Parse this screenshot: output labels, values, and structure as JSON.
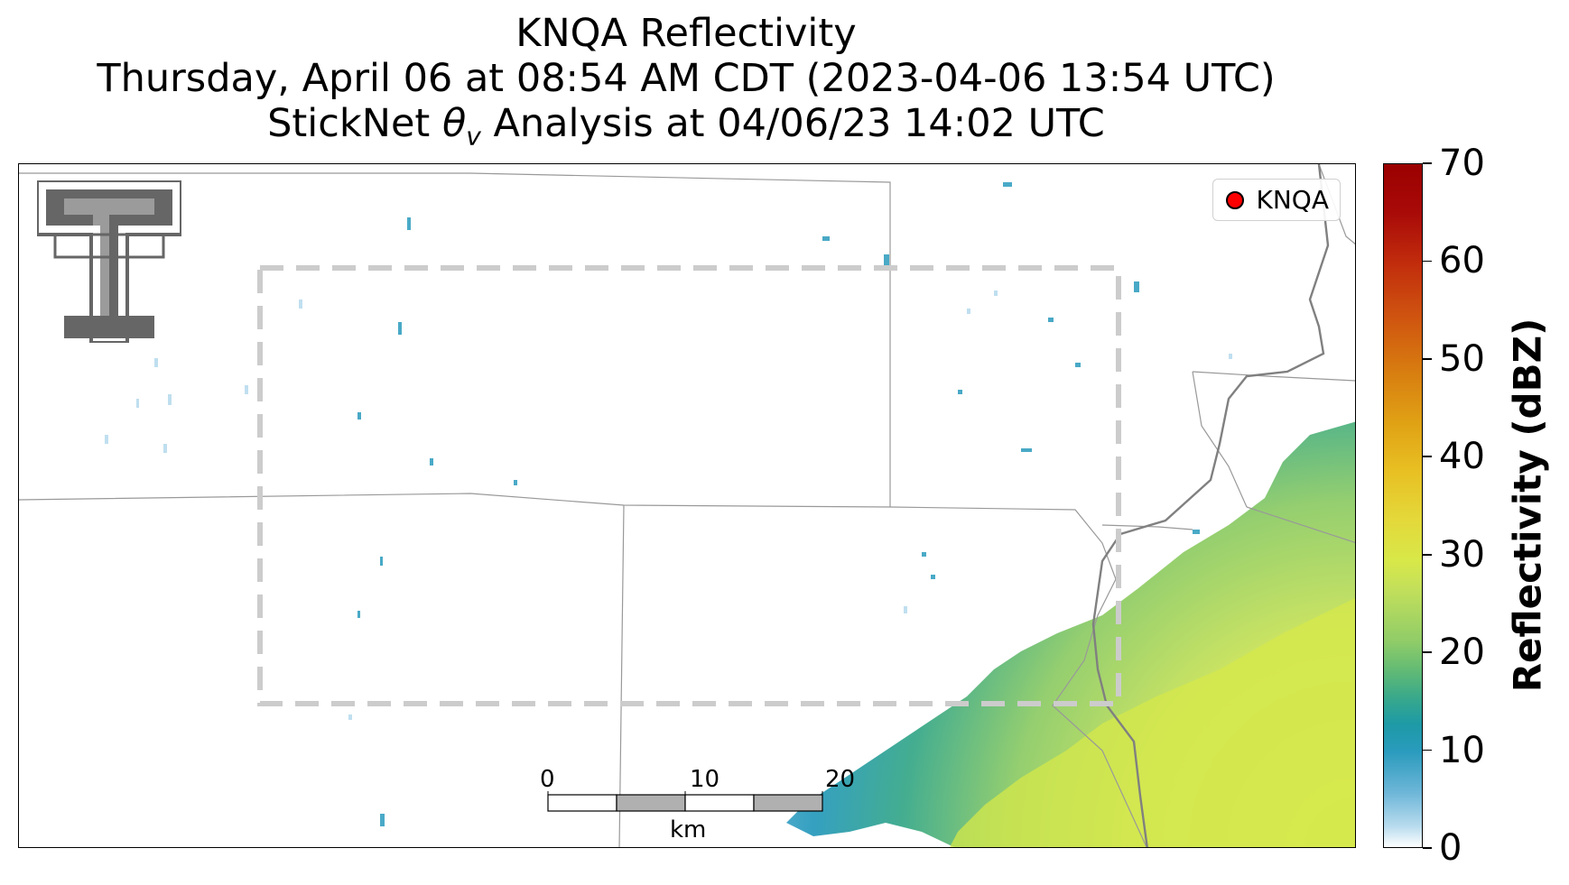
{
  "title": {
    "line1": "KNQA Reflectivity",
    "line2": "Thursday, April 06 at 08:54 AM CDT (2023-04-06 13:54 UTC)",
    "line3_prefix": "StickNet ",
    "line3_symbol": "θ",
    "line3_subscript": "v",
    "line3_suffix": " Analysis at 04/06/23 14:02 UTC"
  },
  "legend": {
    "label": "KNQA",
    "marker_color": "#ff0000"
  },
  "scalebar": {
    "ticks": [
      "0",
      "10",
      "20"
    ],
    "unit": "km"
  },
  "colorbar": {
    "label": "Reflectivity (dBZ)",
    "ticks": [
      "0",
      "10",
      "20",
      "30",
      "40",
      "50",
      "60",
      "70"
    ],
    "range": [
      0,
      70
    ]
  },
  "colors": {
    "analysis_box": "#cccccc",
    "county_lines": "#999999",
    "state_line": "#808080",
    "logo_fill": "#666666"
  }
}
